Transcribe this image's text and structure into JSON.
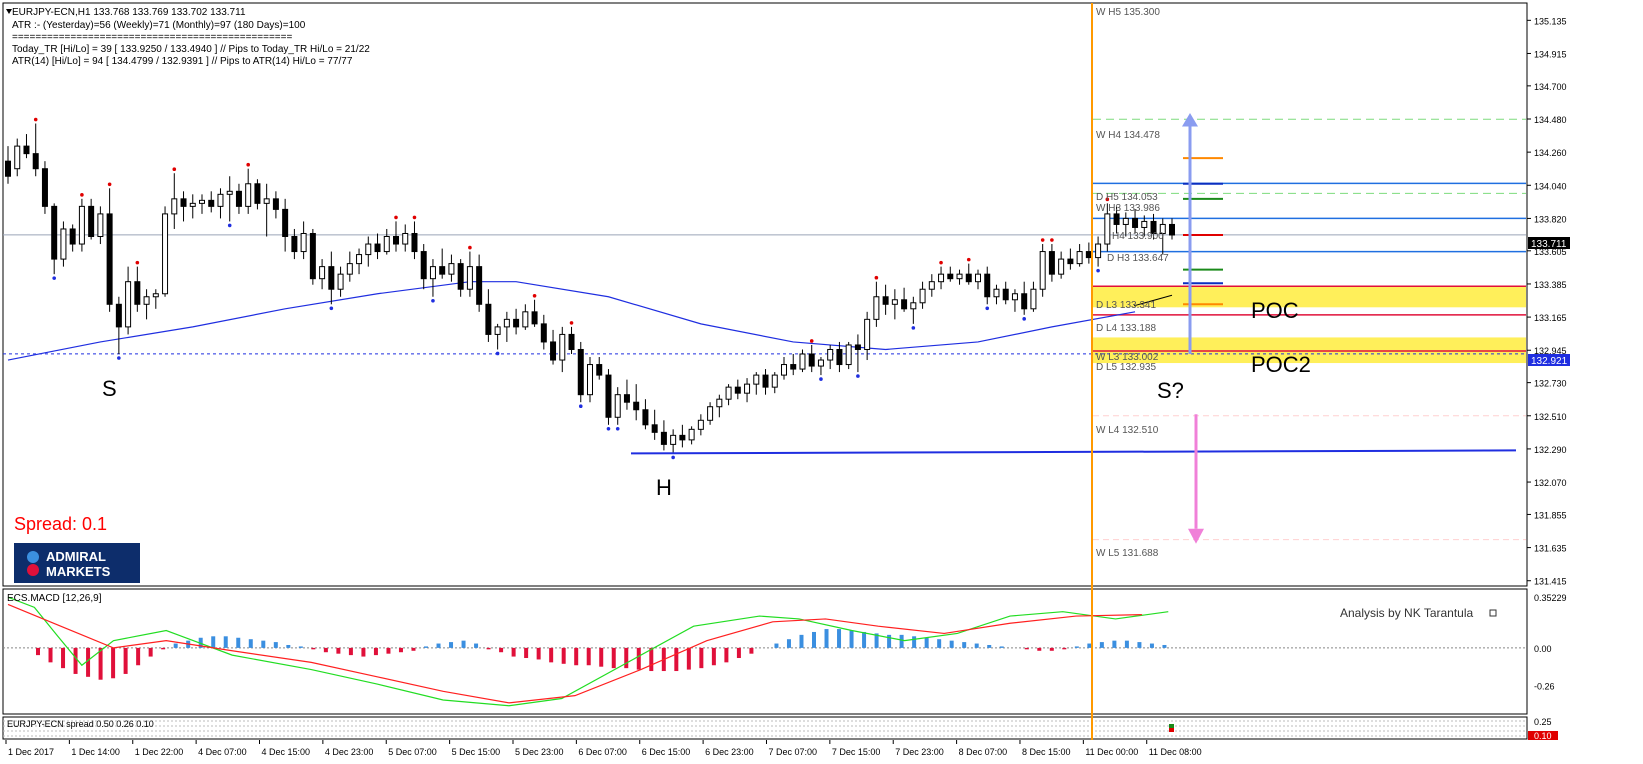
{
  "header": {
    "symbol_line": "EURJPY-ECN,H1  133.768 133.769 133.702 133.711",
    "atr_line": "ATR :- (Yesterday)=56       (Weekly)=71       (Monthly)=97       (180 Days)=100",
    "separator": "================================================",
    "today_line": "Today_TR [Hi/Lo] = 39 [ 133.9250 / 133.4940 ]  // Pips to Today_TR Hi/Lo  = 21/22",
    "atr14_line": "ATR(14)      [Hi/Lo] = 94 [ 134.4799 / 132.9391 ]  //  Pips to ATR(14) Hi/Lo      = 77/77"
  },
  "spread_label": "Spread:  0.1",
  "logo": {
    "line1": "ADMIRAL",
    "line2": "MARKETS"
  },
  "annotations": {
    "s": "S",
    "h": "H",
    "s2": "S?",
    "poc": "POC",
    "poc2": "POC2"
  },
  "level_labels": {
    "wh5": "W  H5 135.300",
    "wh4": "W  H4 134.478",
    "dh5": "D   H5 134.053",
    "wh3": "W  H3 133.986",
    "dh4": "H4 133.900",
    "dh3": "D  H3 133.647",
    "dl3": "D   L3 133.341",
    "dl4": "D   L4 133.188",
    "wl3": "W  L3 133.002",
    "dl5": "D   L5 132.935",
    "wl4": "W  L4 132.510",
    "wl5": "W  L5 131.688"
  },
  "price_axis": {
    "ticks": [
      "135.135",
      "134.915",
      "134.700",
      "134.480",
      "134.260",
      "134.040",
      "133.820",
      "133.605",
      "133.385",
      "133.165",
      "132.945",
      "132.730",
      "132.510",
      "132.290",
      "132.070",
      "131.855",
      "131.635",
      "131.415"
    ],
    "current_price": "133.711",
    "level_price": "132.921"
  },
  "macd": {
    "title": "ECS.MACD [12,26,9]",
    "ticks": [
      "0.35229",
      "0.00",
      "-0.26"
    ],
    "credit": "Analysis by NK Tarantula"
  },
  "spread_panel": {
    "title": "EURJPY-ECN  spread 0.50 0.26 0.10",
    "ticks": [
      "0.25",
      "0.10"
    ]
  },
  "time_axis": [
    "1 Dec 2017",
    "1 Dec 14:00",
    "1 Dec 22:00",
    "4 Dec 07:00",
    "4 Dec 15:00",
    "4 Dec 23:00",
    "5 Dec 07:00",
    "5 Dec 15:00",
    "5 Dec 23:00",
    "6 Dec 07:00",
    "6 Dec 15:00",
    "6 Dec 23:00",
    "7 Dec 07:00",
    "7 Dec 15:00",
    "7 Dec 23:00",
    "8 Dec 07:00",
    "8 Dec 15:00",
    "11 Dec 00:00",
    "11 Dec 08:00"
  ],
  "colors": {
    "bg": "#ffffff",
    "candle": "#000000",
    "ma": "#1f2ee0",
    "vline": "#ff9900",
    "poc": "#ffef5a",
    "current_tag": "#000000",
    "level_tag": "#1f2ee0",
    "macd_up": "#3b8fe0",
    "macd_down": "#e0103a",
    "macd_signal": "#ff2020",
    "macd_line": "#22dd22"
  },
  "chart_data": {
    "type": "candlestick",
    "symbol": "EURJPY-ECN",
    "timeframe": "H1",
    "ylim": [
      131.38,
      135.25
    ],
    "points": [
      [
        134.2,
        134.3,
        134.05,
        134.1
      ],
      [
        134.15,
        134.35,
        134.1,
        134.3
      ],
      [
        134.3,
        134.38,
        134.22,
        134.25
      ],
      [
        134.25,
        134.45,
        134.1,
        134.15
      ],
      [
        134.15,
        134.2,
        133.85,
        133.9
      ],
      [
        133.9,
        133.92,
        133.45,
        133.55
      ],
      [
        133.55,
        133.8,
        133.5,
        133.75
      ],
      [
        133.75,
        133.78,
        133.6,
        133.65
      ],
      [
        133.65,
        133.95,
        133.6,
        133.9
      ],
      [
        133.9,
        133.95,
        133.68,
        133.7
      ],
      [
        133.7,
        133.9,
        133.65,
        133.85
      ],
      [
        133.85,
        134.02,
        133.2,
        133.25
      ],
      [
        133.25,
        133.3,
        132.92,
        133.1
      ],
      [
        133.1,
        133.5,
        133.05,
        133.4
      ],
      [
        133.4,
        133.5,
        133.2,
        133.25
      ],
      [
        133.25,
        133.35,
        133.15,
        133.3
      ],
      [
        133.3,
        133.35,
        133.22,
        133.32
      ],
      [
        133.32,
        133.9,
        133.3,
        133.85
      ],
      [
        133.85,
        134.12,
        133.75,
        133.95
      ],
      [
        133.95,
        134.0,
        133.8,
        133.9
      ],
      [
        133.9,
        133.98,
        133.82,
        133.92
      ],
      [
        133.92,
        133.98,
        133.85,
        133.94
      ],
      [
        133.94,
        134.0,
        133.86,
        133.9
      ],
      [
        133.9,
        134.02,
        133.82,
        133.98
      ],
      [
        133.98,
        134.1,
        133.8,
        134.0
      ],
      [
        134.0,
        134.05,
        133.85,
        133.9
      ],
      [
        133.9,
        134.15,
        133.85,
        134.05
      ],
      [
        134.05,
        134.08,
        133.88,
        133.92
      ],
      [
        133.92,
        134.05,
        133.7,
        133.95
      ],
      [
        133.95,
        134.0,
        133.82,
        133.88
      ],
      [
        133.88,
        133.95,
        133.6,
        133.7
      ],
      [
        133.7,
        133.75,
        133.55,
        133.6
      ],
      [
        133.6,
        133.8,
        133.55,
        133.72
      ],
      [
        133.72,
        133.75,
        133.38,
        133.42
      ],
      [
        133.42,
        133.55,
        133.35,
        133.5
      ],
      [
        133.5,
        133.6,
        133.25,
        133.35
      ],
      [
        133.35,
        133.5,
        133.3,
        133.45
      ],
      [
        133.45,
        133.6,
        133.4,
        133.52
      ],
      [
        133.52,
        133.62,
        133.45,
        133.58
      ],
      [
        133.58,
        133.7,
        133.5,
        133.65
      ],
      [
        133.65,
        133.72,
        133.55,
        133.6
      ],
      [
        133.6,
        133.75,
        133.58,
        133.7
      ],
      [
        133.7,
        133.8,
        133.6,
        133.65
      ],
      [
        133.65,
        133.78,
        133.6,
        133.72
      ],
      [
        133.72,
        133.8,
        133.55,
        133.6
      ],
      [
        133.6,
        133.65,
        133.35,
        133.42
      ],
      [
        133.42,
        133.55,
        133.3,
        133.5
      ],
      [
        133.5,
        133.62,
        133.42,
        133.45
      ],
      [
        133.45,
        133.58,
        133.4,
        133.52
      ],
      [
        133.52,
        133.55,
        133.3,
        133.35
      ],
      [
        133.35,
        133.6,
        133.3,
        133.5
      ],
      [
        133.5,
        133.58,
        133.2,
        133.25
      ],
      [
        133.25,
        133.35,
        133.0,
        133.05
      ],
      [
        133.05,
        133.12,
        132.95,
        133.1
      ],
      [
        133.1,
        133.2,
        133.0,
        133.15
      ],
      [
        133.15,
        133.22,
        133.05,
        133.1
      ],
      [
        133.1,
        133.25,
        133.08,
        133.2
      ],
      [
        133.2,
        133.28,
        133.1,
        133.12
      ],
      [
        133.12,
        133.18,
        132.95,
        133.0
      ],
      [
        133.0,
        133.08,
        132.85,
        132.88
      ],
      [
        132.88,
        133.1,
        132.8,
        133.05
      ],
      [
        133.05,
        133.1,
        132.92,
        132.95
      ],
      [
        132.95,
        133.0,
        132.6,
        132.65
      ],
      [
        132.65,
        132.9,
        132.6,
        132.85
      ],
      [
        132.85,
        132.9,
        132.75,
        132.78
      ],
      [
        132.78,
        132.82,
        132.45,
        132.5
      ],
      [
        132.5,
        132.7,
        132.45,
        132.65
      ],
      [
        132.65,
        132.75,
        132.55,
        132.6
      ],
      [
        132.6,
        132.72,
        132.48,
        132.55
      ],
      [
        132.55,
        132.62,
        132.42,
        132.45
      ],
      [
        132.45,
        132.55,
        132.35,
        132.4
      ],
      [
        132.4,
        132.48,
        132.28,
        132.32
      ],
      [
        132.32,
        132.42,
        132.26,
        132.38
      ],
      [
        132.38,
        132.45,
        132.3,
        132.35
      ],
      [
        132.35,
        132.44,
        132.32,
        132.42
      ],
      [
        132.42,
        132.52,
        132.38,
        132.48
      ],
      [
        132.48,
        132.6,
        132.45,
        132.57
      ],
      [
        132.57,
        132.65,
        132.5,
        132.62
      ],
      [
        132.62,
        132.72,
        132.58,
        132.7
      ],
      [
        132.7,
        132.75,
        132.62,
        132.66
      ],
      [
        132.66,
        132.76,
        132.6,
        132.72
      ],
      [
        132.72,
        132.8,
        132.65,
        132.78
      ],
      [
        132.78,
        132.82,
        132.65,
        132.7
      ],
      [
        132.7,
        132.8,
        132.66,
        132.78
      ],
      [
        132.78,
        132.9,
        132.75,
        132.85
      ],
      [
        132.85,
        132.92,
        132.78,
        132.82
      ],
      [
        132.82,
        132.95,
        132.8,
        132.92
      ],
      [
        132.92,
        132.98,
        132.8,
        132.84
      ],
      [
        132.84,
        132.9,
        132.78,
        132.88
      ],
      [
        132.88,
        132.98,
        132.82,
        132.95
      ],
      [
        132.95,
        133.0,
        132.8,
        132.85
      ],
      [
        132.85,
        133.0,
        132.82,
        132.98
      ],
      [
        132.98,
        133.05,
        132.8,
        132.95
      ],
      [
        132.95,
        133.2,
        132.88,
        133.15
      ],
      [
        133.15,
        133.4,
        133.1,
        133.3
      ],
      [
        133.3,
        133.38,
        133.18,
        133.25
      ],
      [
        133.25,
        133.35,
        133.15,
        133.28
      ],
      [
        133.28,
        133.36,
        133.2,
        133.22
      ],
      [
        133.22,
        133.3,
        133.12,
        133.26
      ],
      [
        133.26,
        133.4,
        133.22,
        133.35
      ],
      [
        133.35,
        133.45,
        133.3,
        133.4
      ],
      [
        133.4,
        133.5,
        133.35,
        133.45
      ],
      [
        133.45,
        133.5,
        133.4,
        133.42
      ],
      [
        133.42,
        133.48,
        133.38,
        133.45
      ],
      [
        133.45,
        133.52,
        133.38,
        133.4
      ],
      [
        133.4,
        133.48,
        133.35,
        133.45
      ],
      [
        133.45,
        133.5,
        133.25,
        133.3
      ],
      [
        133.3,
        133.38,
        133.25,
        133.35
      ],
      [
        133.35,
        133.4,
        133.25,
        133.28
      ],
      [
        133.28,
        133.35,
        133.2,
        133.32
      ],
      [
        133.32,
        133.4,
        133.18,
        133.22
      ],
      [
        133.22,
        133.4,
        133.2,
        133.35
      ],
      [
        133.35,
        133.65,
        133.3,
        133.6
      ],
      [
        133.6,
        133.65,
        133.4,
        133.45
      ],
      [
        133.45,
        133.6,
        133.42,
        133.55
      ],
      [
        133.55,
        133.62,
        133.48,
        133.52
      ],
      [
        133.52,
        133.65,
        133.5,
        133.6
      ],
      [
        133.6,
        133.66,
        133.52,
        133.56
      ],
      [
        133.56,
        133.7,
        133.5,
        133.65
      ],
      [
        133.65,
        133.92,
        133.6,
        133.85
      ],
      [
        133.85,
        133.9,
        133.72,
        133.78
      ],
      [
        133.78,
        133.86,
        133.7,
        133.82
      ],
      [
        133.82,
        133.88,
        133.72,
        133.76
      ],
      [
        133.76,
        133.84,
        133.7,
        133.8
      ],
      [
        133.8,
        133.85,
        133.68,
        133.72
      ],
      [
        133.72,
        133.82,
        133.58,
        133.78
      ],
      [
        133.78,
        133.82,
        133.68,
        133.71
      ]
    ],
    "ma_curve": [
      [
        0,
        132.88
      ],
      [
        10,
        133.0
      ],
      [
        20,
        133.1
      ],
      [
        30,
        133.22
      ],
      [
        40,
        133.32
      ],
      [
        50,
        133.4
      ],
      [
        55,
        133.4
      ],
      [
        65,
        133.3
      ],
      [
        75,
        133.12
      ],
      [
        85,
        133.0
      ],
      [
        95,
        132.95
      ],
      [
        105,
        133.0
      ],
      [
        113,
        133.1
      ],
      [
        122,
        133.2
      ]
    ],
    "levels": [
      {
        "name": "W H5",
        "price": 135.3
      },
      {
        "name": "W H4",
        "price": 134.478
      },
      {
        "name": "D H5",
        "price": 134.053
      },
      {
        "name": "W H3",
        "price": 133.986
      },
      {
        "name": "D H4",
        "price": 133.9
      },
      {
        "name": "D H3",
        "price": 133.647
      },
      {
        "name": "D L3",
        "price": 133.341
      },
      {
        "name": "D L4",
        "price": 133.188
      },
      {
        "name": "W L3",
        "price": 133.002
      },
      {
        "name": "D L5",
        "price": 132.935
      },
      {
        "name": "W L4",
        "price": 132.51
      },
      {
        "name": "W L5",
        "price": 131.688
      }
    ],
    "support_line": 132.921,
    "neckline": [
      [
        631,
        132.26
      ],
      [
        1516,
        132.28
      ]
    ],
    "macd_hist": [
      -0.05,
      -0.1,
      -0.14,
      -0.18,
      -0.2,
      -0.22,
      -0.21,
      -0.18,
      -0.12,
      -0.06,
      -0.01,
      0.03,
      0.05,
      0.07,
      0.08,
      0.08,
      0.07,
      0.06,
      0.05,
      0.04,
      0.02,
      0.01,
      -0.01,
      -0.03,
      -0.04,
      -0.05,
      -0.06,
      -0.05,
      -0.04,
      -0.03,
      -0.02,
      0.01,
      0.03,
      0.04,
      0.05,
      0.03,
      -0.01,
      -0.03,
      -0.06,
      -0.07,
      -0.08,
      -0.1,
      -0.11,
      -0.12,
      -0.12,
      -0.13,
      -0.14,
      -0.14,
      -0.15,
      -0.16,
      -0.16,
      -0.16,
      -0.15,
      -0.14,
      -0.12,
      -0.1,
      -0.07,
      -0.04,
      0.0,
      0.03,
      0.06,
      0.09,
      0.11,
      0.13,
      0.13,
      0.12,
      0.11,
      0.1,
      0.09,
      0.09,
      0.08,
      0.07,
      0.06,
      0.05,
      0.04,
      0.03,
      0.02,
      0.01,
      0.0,
      -0.01,
      -0.02,
      -0.02,
      -0.01,
      0.01,
      0.03,
      0.04,
      0.05,
      0.05,
      0.04,
      0.03,
      0.02,
      -0.01,
      -0.03,
      -0.04
    ],
    "macd_line": [
      [
        0,
        0.35
      ],
      [
        10,
        0.28
      ],
      [
        18,
        0.1
      ],
      [
        28,
        -0.12
      ],
      [
        40,
        0.05
      ],
      [
        60,
        0.12
      ],
      [
        85,
        -0.05
      ],
      [
        115,
        -0.15
      ],
      [
        140,
        -0.25
      ],
      [
        165,
        -0.36
      ],
      [
        190,
        -0.4
      ],
      [
        210,
        -0.35
      ],
      [
        235,
        -0.1
      ],
      [
        260,
        0.15
      ],
      [
        285,
        0.22
      ],
      [
        300,
        0.2
      ],
      [
        320,
        0.12
      ],
      [
        340,
        0.05
      ],
      [
        360,
        0.1
      ],
      [
        380,
        0.22
      ],
      [
        400,
        0.25
      ],
      [
        420,
        0.2
      ],
      [
        440,
        0.25
      ]
    ],
    "macd_signal": [
      [
        0,
        0.3
      ],
      [
        20,
        0.15
      ],
      [
        40,
        0.0
      ],
      [
        60,
        0.05
      ],
      [
        85,
        -0.02
      ],
      [
        115,
        -0.1
      ],
      [
        140,
        -0.2
      ],
      [
        165,
        -0.3
      ],
      [
        190,
        -0.38
      ],
      [
        215,
        -0.33
      ],
      [
        240,
        -0.15
      ],
      [
        265,
        0.05
      ],
      [
        290,
        0.18
      ],
      [
        310,
        0.2
      ],
      [
        330,
        0.15
      ],
      [
        355,
        0.1
      ],
      [
        380,
        0.17
      ],
      [
        405,
        0.22
      ],
      [
        430,
        0.23
      ]
    ]
  }
}
